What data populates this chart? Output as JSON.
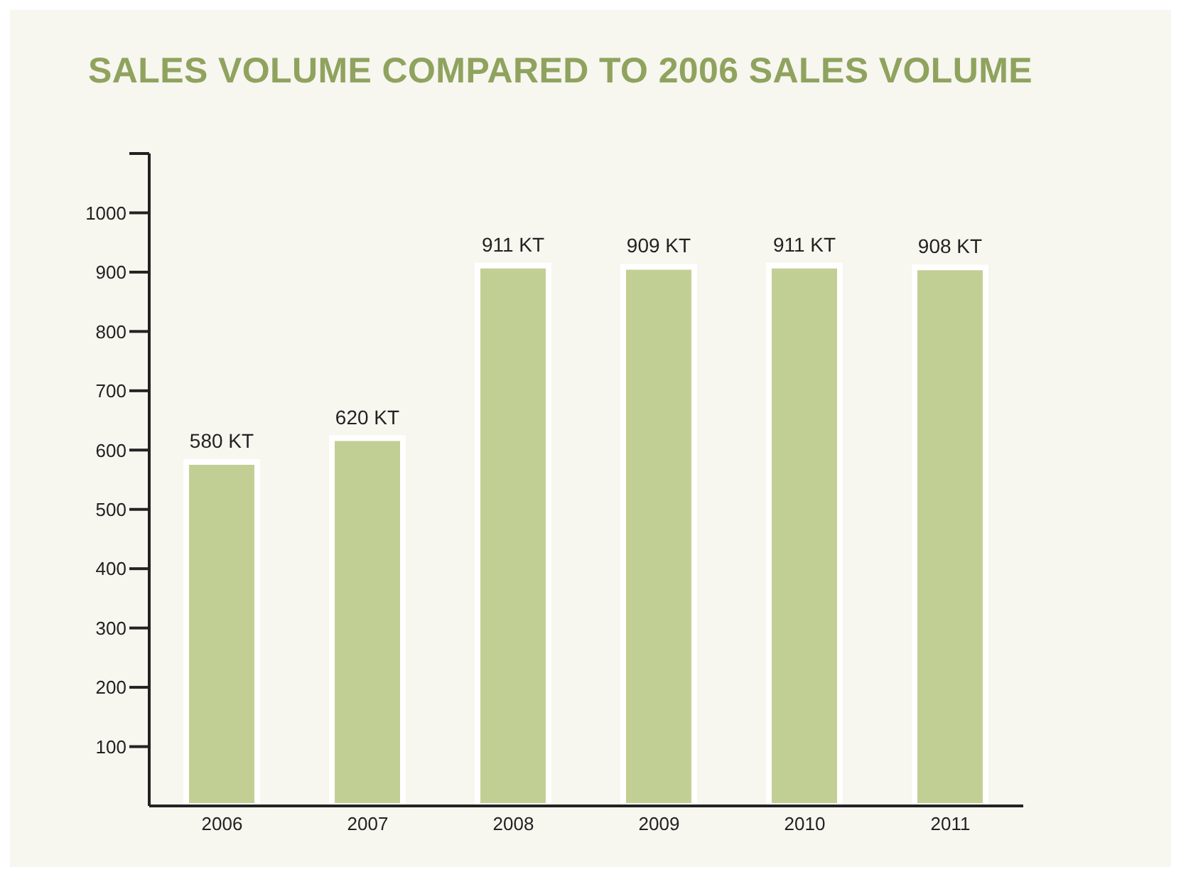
{
  "chart_data": {
    "type": "bar",
    "title": "SALES VOLUME COMPARED TO 2006 SALES VOLUME",
    "categories": [
      "2006",
      "2007",
      "2008",
      "2009",
      "2010",
      "2011"
    ],
    "values": [
      580,
      620,
      911,
      909,
      911,
      908
    ],
    "value_labels": [
      "580 KT",
      "620 KT",
      "911 KT",
      "909 KT",
      "911 KT",
      "908 KT"
    ],
    "color": "#c2cf94",
    "ylim": [
      0,
      1100
    ],
    "yticks": [
      100,
      200,
      300,
      400,
      500,
      600,
      700,
      800,
      900,
      1000,
      {
        "value": 1100,
        "label": null
      }
    ],
    "grid": false,
    "legend": false
  }
}
